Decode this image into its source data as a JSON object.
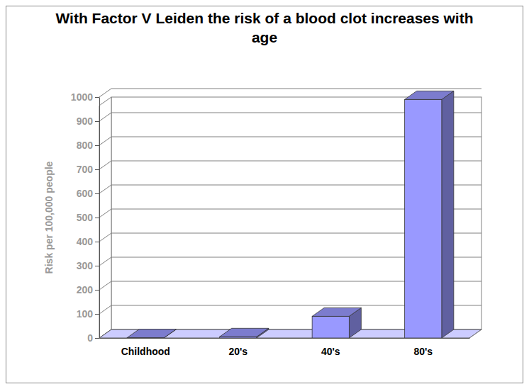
{
  "chart_data": {
    "type": "bar",
    "title": "With Factor V Leiden the risk of a blood clot increases with age",
    "y_label": "Risk per 100,000 people",
    "categories": [
      "Childhood",
      "20's",
      "40's",
      "80's"
    ],
    "values": [
      1,
      5,
      90,
      990
    ],
    "color": "#9999ff",
    "ylim": [
      0,
      1000
    ],
    "yticks": [
      0,
      100,
      200,
      300,
      400,
      500,
      600,
      700,
      800,
      900,
      1000
    ],
    "grid": true
  }
}
